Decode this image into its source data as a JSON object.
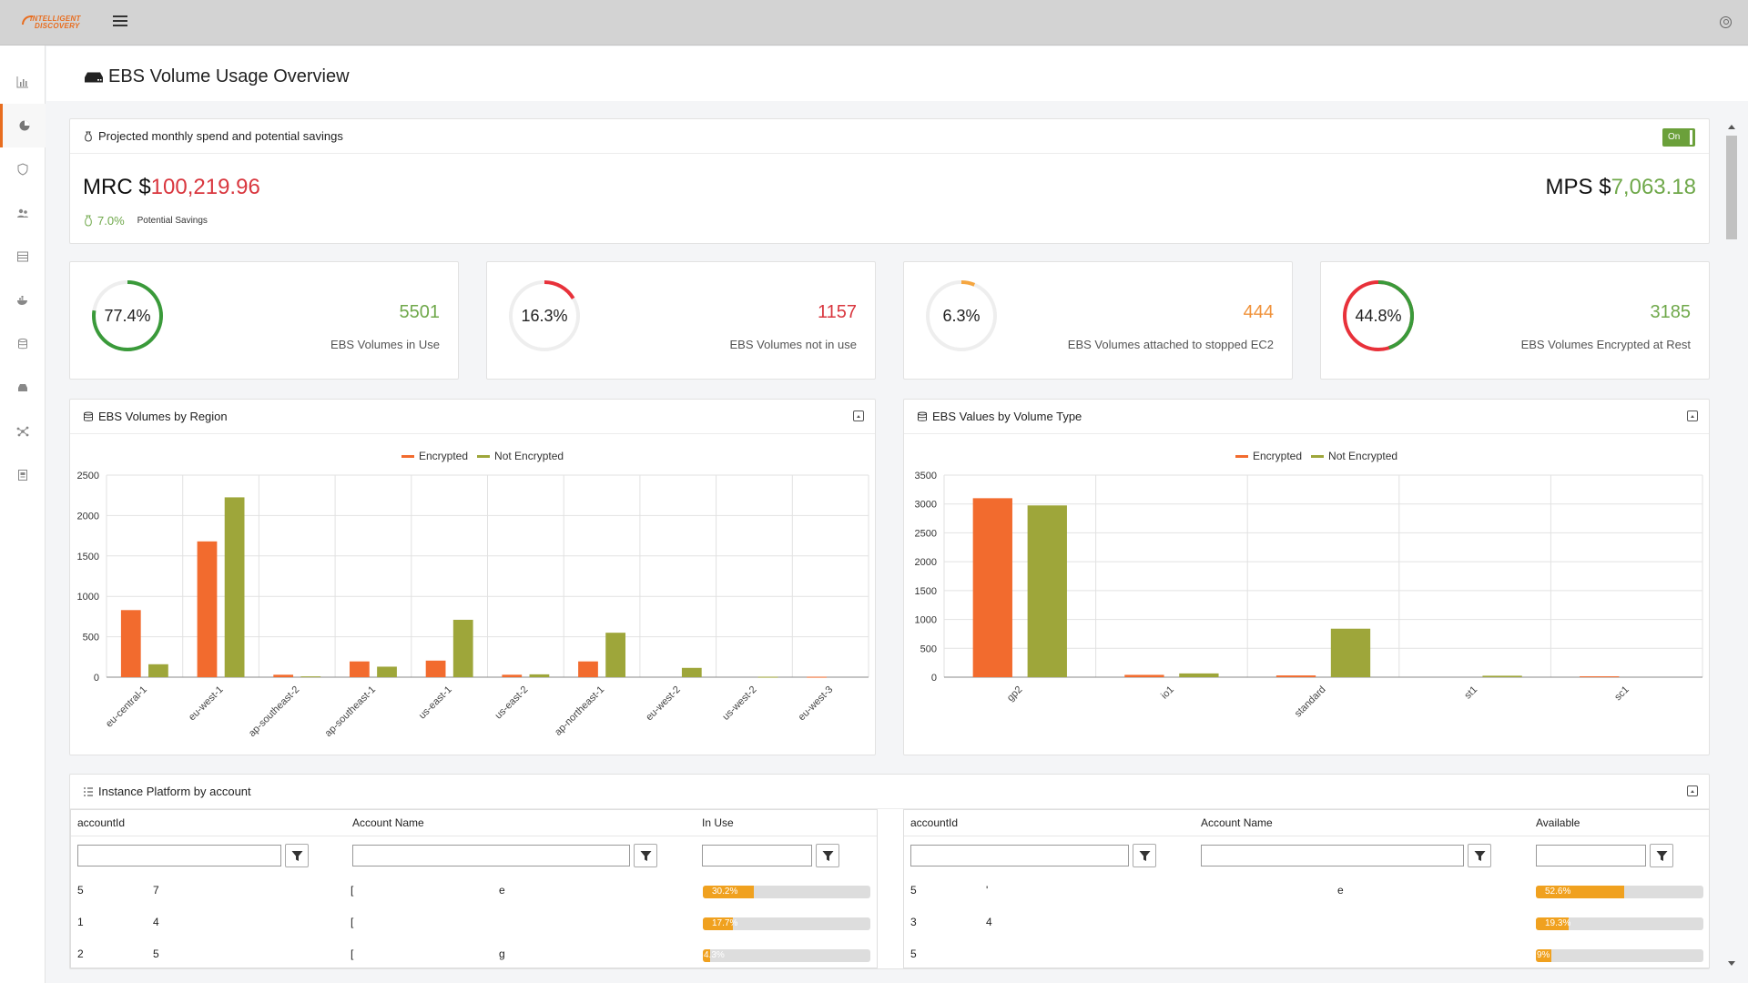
{
  "app": {
    "logo_line1": "INTELLIGENT",
    "logo_line2": "DISCOVERY"
  },
  "page": {
    "title": "EBS Volume Usage Overview"
  },
  "spend": {
    "title": "Projected monthly spend and potential savings",
    "toggle_label": "On",
    "mrc_label": "MRC $",
    "mrc_value": "100,219.96",
    "mps_label": "MPS $",
    "mps_value": "7,063.18",
    "savings_pct": "7.0%",
    "savings_label": "Potential Savings"
  },
  "gauges": [
    {
      "percent": "77.4%",
      "fraction": 0.774,
      "count": "5501",
      "caption": "EBS Volumes in Use",
      "color": "#3a9a3a",
      "count_color": "#6fa84a",
      "mode": "single"
    },
    {
      "percent": "16.3%",
      "fraction": 0.163,
      "count": "1157",
      "caption": "EBS Volumes not in use",
      "color": "#e8313a",
      "count_color": "#d9373f",
      "mode": "single"
    },
    {
      "percent": "6.3%",
      "fraction": 0.063,
      "count": "444",
      "caption": "EBS Volumes attached to stopped EC2",
      "color": "#f5a640",
      "count_color": "#f0923a",
      "mode": "single"
    },
    {
      "percent": "44.8%",
      "fraction": 0.448,
      "count": "3185",
      "caption": "EBS Volumes Encrypted at Rest",
      "color": "#3a9a3a",
      "rest_color": "#e8313a",
      "count_color": "#6fa84a",
      "mode": "split"
    }
  ],
  "chart_region_title": "EBS Volumes by Region",
  "chart_type_title": "EBS Values by Volume Type",
  "chart_data": [
    {
      "type": "bar",
      "categories": [
        "eu-central-1",
        "eu-west-1",
        "ap-southeast-2",
        "ap-southeast-1",
        "us-east-1",
        "us-east-2",
        "ap-northeast-1",
        "eu-west-2",
        "us-west-2",
        "eu-west-3"
      ],
      "series": [
        {
          "name": "Encrypted",
          "values": [
            830,
            1680,
            30,
            195,
            205,
            30,
            195,
            0,
            0,
            5
          ],
          "color": "#f26b2e"
        },
        {
          "name": "Not Encrypted",
          "values": [
            160,
            2225,
            10,
            130,
            710,
            35,
            550,
            115,
            5,
            0
          ],
          "color": "#9ea63a"
        }
      ],
      "yticks": [
        0,
        500,
        1000,
        1500,
        2000,
        2500
      ],
      "ylim": [
        0,
        2500
      ],
      "grid": true,
      "legend": "top-center"
    },
    {
      "type": "bar",
      "categories": [
        "gp2",
        "io1",
        "standard",
        "st1",
        "sc1"
      ],
      "series": [
        {
          "name": "Encrypted",
          "values": [
            3100,
            40,
            30,
            0,
            15
          ],
          "color": "#f26b2e"
        },
        {
          "name": "Not Encrypted",
          "values": [
            2975,
            65,
            840,
            25,
            0
          ],
          "color": "#9ea63a"
        }
      ],
      "yticks": [
        0,
        500,
        1000,
        1500,
        2000,
        2500,
        3000,
        3500
      ],
      "ylim": [
        0,
        3500
      ],
      "grid": true,
      "legend": "top-center"
    }
  ],
  "platform": {
    "title": "Instance Platform by account",
    "left": {
      "headers": [
        "accountId",
        "Account Name",
        "In Use"
      ],
      "rows": [
        {
          "id1": "5",
          "id2": "7",
          "name1": "[",
          "name2": "e",
          "bar": 0.302,
          "bar_label": "30.2%"
        },
        {
          "id1": "1",
          "id2": "4",
          "name1": "[",
          "name2": "",
          "bar": 0.177,
          "bar_label": "17.7%"
        },
        {
          "id1": "2",
          "id2": "5",
          "name1": "[",
          "name2": "g",
          "bar": 0.043,
          "bar_label": "4.3%"
        }
      ]
    },
    "right": {
      "headers": [
        "accountId",
        "Account Name",
        "Available"
      ],
      "rows": [
        {
          "id1": "5",
          "id2": "'",
          "name1": "",
          "name2": "e",
          "bar": 0.526,
          "bar_label": "52.6%"
        },
        {
          "id1": "3",
          "id2": "4",
          "name1": "",
          "name2": "",
          "bar": 0.193,
          "bar_label": "19.3%"
        },
        {
          "id1": "5",
          "id2": "",
          "name1": "",
          "name2": "",
          "bar": 0.09,
          "bar_label": "9%"
        }
      ]
    }
  },
  "colors": {
    "accent": "#e86d1f",
    "red": "#d9373f",
    "green": "#6fa84a",
    "encrypted": "#f26b2e",
    "not_encrypted": "#9ea63a",
    "progress": "#f0a11f"
  },
  "icons": [
    "hamburger-icon",
    "user-icon",
    "chart-icon",
    "pie-icon",
    "shield-icon",
    "users-icon",
    "table-icon",
    "docker-icon",
    "database-icon",
    "drive-icon",
    "network-icon",
    "report-icon",
    "filter-icon",
    "expand-icon"
  ]
}
